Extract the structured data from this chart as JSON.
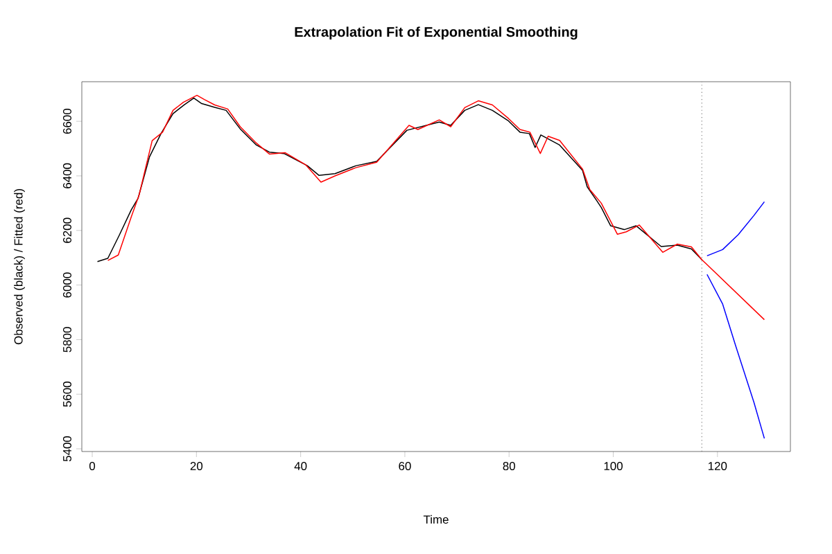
{
  "chart_data": {
    "type": "line",
    "title": "Extrapolation Fit of Exponential Smoothing",
    "xlabel": "Time",
    "ylabel": "Observed (black) / Fitted (red)",
    "xlim": [
      -2,
      134
    ],
    "ylim": [
      5390,
      6745
    ],
    "xticks": [
      0,
      20,
      40,
      60,
      80,
      100,
      120
    ],
    "yticks": [
      5400,
      5600,
      5800,
      6000,
      6200,
      6400,
      6600
    ],
    "ref_lines": [
      {
        "axis": "x",
        "value": 117,
        "color": "#808080",
        "line_style": "dotted"
      }
    ],
    "series": [
      {
        "color": "#000000",
        "x": [
          1,
          3,
          5.2,
          7.5,
          8.8,
          11,
          13.2,
          15.5,
          17.7,
          19.5,
          21,
          23.5,
          25.7,
          28.4,
          31.5,
          34,
          36.8,
          41.3,
          43.5,
          46.6,
          50.6,
          54.6,
          60.4,
          66.6,
          68.8,
          71.5,
          74.1,
          76.8,
          79.9,
          82.1,
          83.9,
          85,
          86.1,
          89.7,
          94.1,
          95,
          96.8,
          97.7,
          99.5,
          102.1,
          104.4,
          109.2,
          112.3,
          115,
          117
        ],
        "values": [
          6086,
          6098,
          6183,
          6276,
          6318,
          6470,
          6555,
          6628,
          6661,
          6685,
          6665,
          6651,
          6640,
          6572,
          6513,
          6487,
          6482,
          6437,
          6402,
          6408,
          6437,
          6453,
          6567,
          6597,
          6585,
          6640,
          6661,
          6640,
          6601,
          6560,
          6555,
          6504,
          6550,
          6513,
          6420,
          6360,
          6310,
          6284,
          6217,
          6203,
          6217,
          6141,
          6146,
          6132,
          6093
        ]
      },
      {
        "color": "#ff0000",
        "x": [
          3,
          5,
          7.5,
          9,
          11.5,
          13.5,
          15.5,
          17.5,
          20.1,
          21.5,
          23.5,
          26,
          28.4,
          31.5,
          34,
          37,
          41,
          43.9,
          46.6,
          50.6,
          54.6,
          60.8,
          62.5,
          66.6,
          68.8,
          71.5,
          74.1,
          76.8,
          79.9,
          82.1,
          84,
          86,
          87.5,
          89.7,
          94.1,
          95.5,
          97.7,
          100.8,
          102.5,
          105,
          109.5,
          112.3,
          115,
          117,
          129
        ],
        "values": [
          6090,
          6110,
          6250,
          6330,
          6529,
          6560,
          6640,
          6670,
          6695,
          6680,
          6660,
          6645,
          6580,
          6520,
          6480,
          6485,
          6440,
          6377,
          6400,
          6430,
          6450,
          6585,
          6570,
          6605,
          6580,
          6650,
          6675,
          6660,
          6610,
          6570,
          6560,
          6482,
          6545,
          6530,
          6425,
          6350,
          6300,
          6186,
          6195,
          6220,
          6120,
          6150,
          6140,
          6093,
          5873
        ]
      },
      {
        "color": "#0000ff",
        "x": [
          118,
          121,
          124,
          127,
          129
        ],
        "values": [
          6107,
          6130,
          6185,
          6255,
          6305
        ]
      },
      {
        "color": "#0000ff",
        "x": [
          118,
          121,
          123.5,
          127,
          129
        ],
        "values": [
          6039,
          5930,
          5777,
          5570,
          5438
        ]
      }
    ]
  }
}
